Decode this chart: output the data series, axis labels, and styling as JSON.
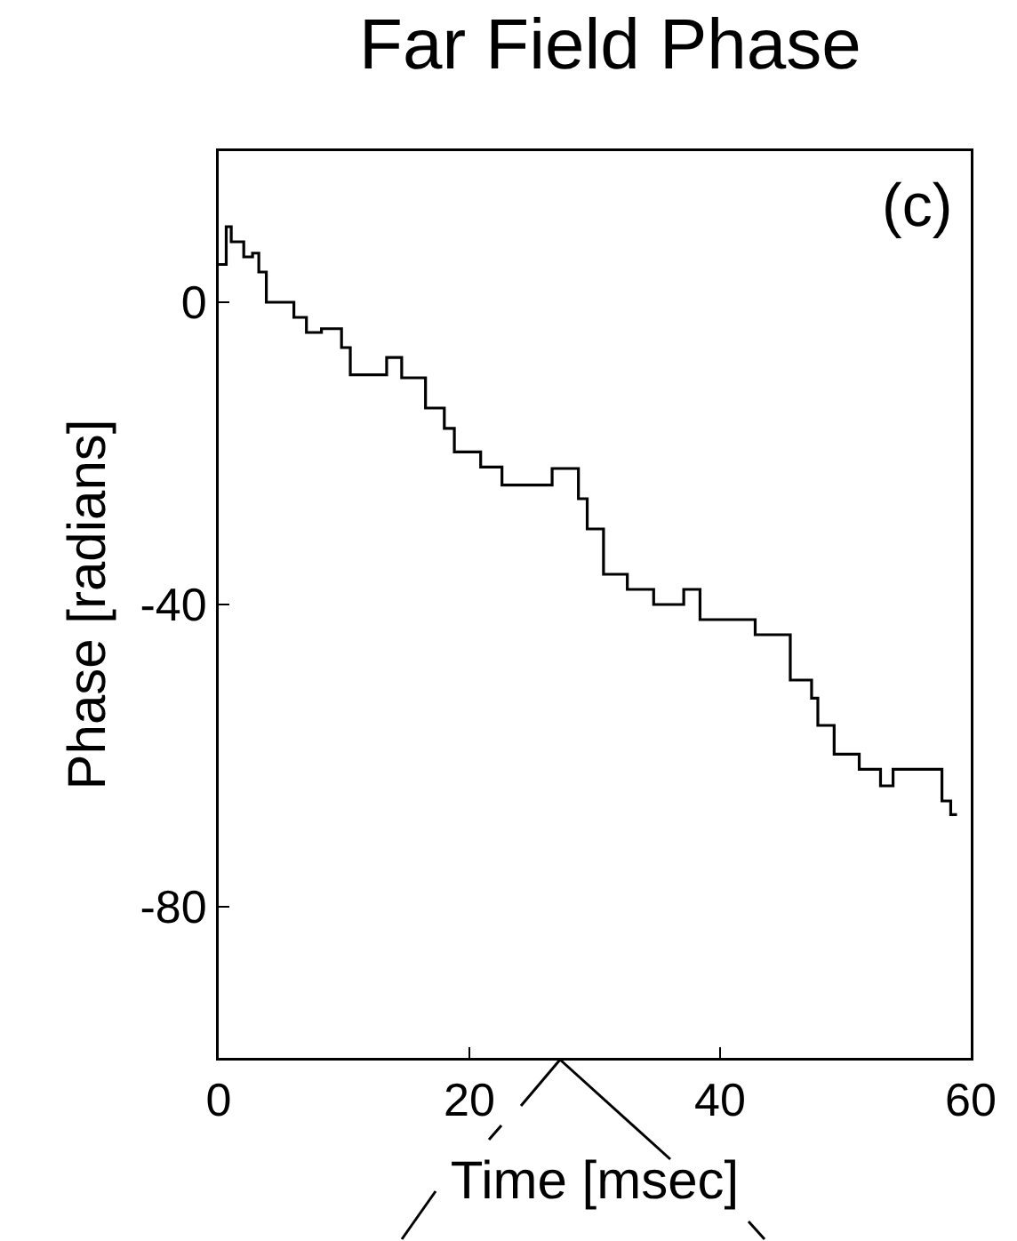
{
  "chart_data": {
    "type": "step",
    "title": "Far Field Phase",
    "xlabel": "Time [msec]",
    "ylabel": "Phase [radians]",
    "annotations": [
      "(c)"
    ],
    "x": [
      0,
      0.6,
      1,
      2,
      2.7,
      3.2,
      3.8,
      6,
      7,
      8.2,
      8.9,
      9.8,
      10.5,
      13.4,
      14.6,
      16.5,
      18,
      18.8,
      20.9,
      22.6,
      26.6,
      28.7,
      29.4,
      30.7,
      32.6,
      34.7,
      37.1,
      38.4,
      42.8,
      45.6,
      47.3,
      47.8,
      49.1,
      51.1,
      52.8,
      53.8,
      57.7,
      58.4,
      58.9
    ],
    "series": [
      {
        "color": "#000000",
        "values": [
          5,
          10,
          8,
          6,
          6.5,
          4,
          0,
          -2,
          -4,
          -3.5,
          -3.5,
          -6,
          -9.6,
          -7.3,
          -10,
          -14,
          -16.7,
          -19.8,
          -21.8,
          -24.2,
          -22,
          -26,
          -30,
          -36,
          -38,
          -40,
          -38,
          -42,
          -44,
          -50,
          -52.4,
          -56,
          -59.8,
          -61.8,
          -64,
          -61.8,
          -66,
          -67.8,
          -67.8
        ]
      }
    ],
    "xlim": [
      0,
      60
    ],
    "xticks": [
      0,
      20,
      40,
      60
    ],
    "ylim": [
      -100,
      20
    ],
    "yticks": [
      -80,
      -40,
      0
    ]
  }
}
